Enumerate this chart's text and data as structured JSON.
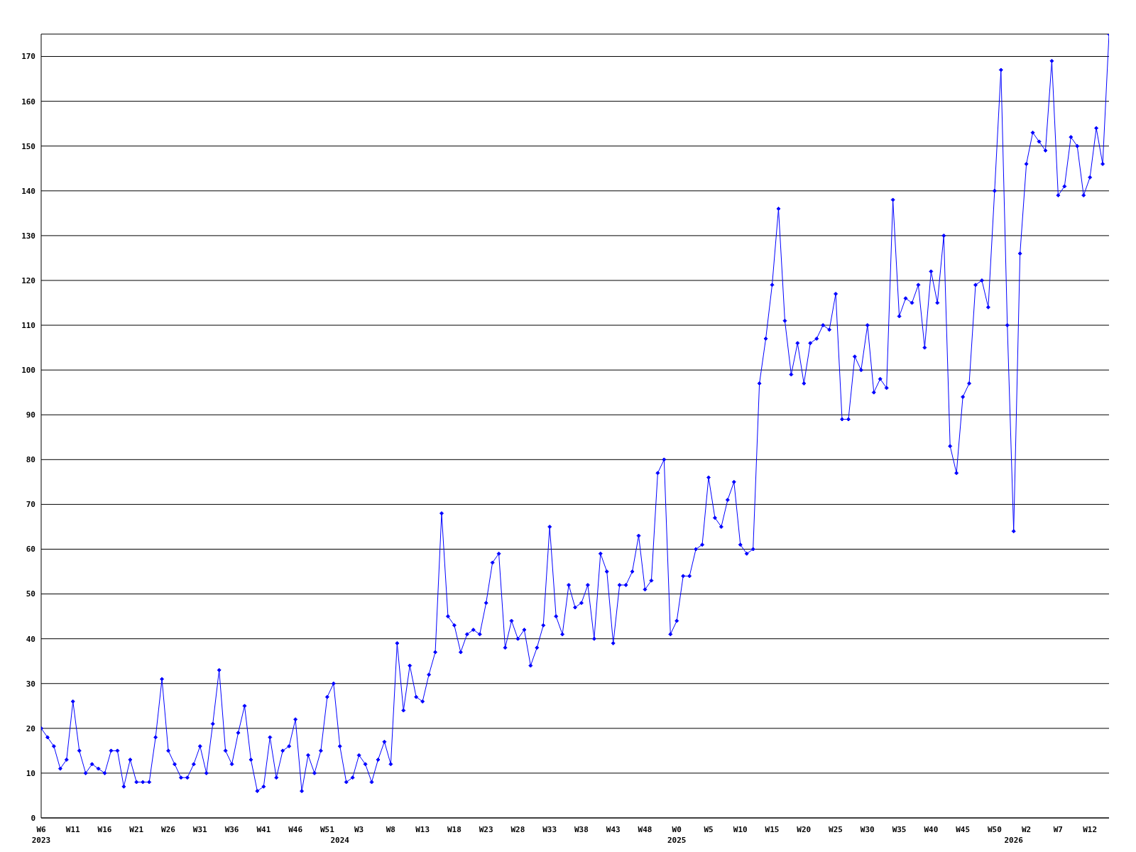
{
  "chart_data": {
    "type": "line",
    "color": "#0000ff",
    "marker": "diamond",
    "grid": "y",
    "ylim": [
      0,
      175
    ],
    "yticks": [
      0,
      10,
      20,
      30,
      40,
      50,
      60,
      70,
      80,
      90,
      100,
      110,
      120,
      130,
      140,
      150,
      160,
      170
    ],
    "categories": [
      "W6\n2023",
      null,
      null,
      null,
      null,
      "W11",
      null,
      null,
      null,
      null,
      "W16",
      null,
      null,
      null,
      null,
      "W21",
      null,
      null,
      null,
      null,
      "W26",
      null,
      null,
      null,
      null,
      "W31",
      null,
      null,
      null,
      null,
      "W36",
      null,
      null,
      null,
      null,
      "W41",
      null,
      null,
      null,
      null,
      "W46",
      null,
      null,
      null,
      null,
      "W51",
      null,
      "\n2024",
      null,
      null,
      "W3",
      null,
      null,
      null,
      null,
      "W8",
      null,
      null,
      null,
      null,
      "W13",
      null,
      null,
      null,
      null,
      "W18",
      null,
      null,
      null,
      null,
      "W23",
      null,
      null,
      null,
      null,
      "W28",
      null,
      null,
      null,
      null,
      "W33",
      null,
      null,
      null,
      null,
      "W38",
      null,
      null,
      null,
      null,
      "W43",
      null,
      null,
      null,
      null,
      "W48",
      null,
      null,
      null,
      null,
      "W0\n2025",
      null,
      null,
      null,
      null,
      "W5",
      null,
      null,
      null,
      null,
      "W10",
      null,
      null,
      null,
      null,
      "W15",
      null,
      null,
      null,
      null,
      "W20",
      null,
      null,
      null,
      null,
      "W25",
      null,
      null,
      null,
      null,
      "W30",
      null,
      null,
      null,
      null,
      "W35",
      null,
      null,
      null,
      null,
      "W40",
      null,
      null,
      null,
      null,
      "W45",
      null,
      null,
      null,
      null,
      "W50",
      null,
      null,
      "\n2026",
      null,
      "W2",
      null,
      null,
      null,
      null,
      "W7",
      null,
      null,
      null,
      null,
      "W12",
      null,
      null,
      null
    ],
    "values": [
      20,
      18,
      16,
      11,
      13,
      26,
      15,
      10,
      12,
      11,
      10,
      15,
      15,
      7,
      13,
      8,
      8,
      8,
      18,
      31,
      15,
      12,
      9,
      9,
      12,
      16,
      10,
      21,
      33,
      15,
      12,
      19,
      25,
      13,
      6,
      7,
      18,
      9,
      15,
      16,
      22,
      6,
      14,
      10,
      15,
      27,
      30,
      16,
      8,
      9,
      14,
      12,
      8,
      13,
      17,
      12,
      39,
      24,
      34,
      27,
      26,
      32,
      37,
      68,
      45,
      43,
      37,
      41,
      42,
      41,
      48,
      57,
      59,
      38,
      44,
      40,
      42,
      34,
      38,
      43,
      65,
      45,
      41,
      52,
      47,
      48,
      52,
      40,
      59,
      55,
      39,
      52,
      52,
      55,
      63,
      51,
      53,
      77,
      80,
      41,
      44,
      54,
      54,
      60,
      61,
      76,
      67,
      65,
      71,
      75,
      61,
      59,
      60,
      97,
      107,
      119,
      136,
      111,
      99,
      106,
      97,
      106,
      107,
      110,
      109,
      117,
      89,
      89,
      103,
      100,
      110,
      95,
      98,
      96,
      138,
      112,
      116,
      115,
      119,
      105,
      122,
      115,
      130,
      83,
      77,
      94,
      97,
      119,
      120,
      114,
      140,
      167,
      110,
      64,
      126,
      146,
      153,
      151,
      149,
      169,
      139,
      141,
      152,
      150,
      139,
      143,
      154,
      146,
      175
    ]
  }
}
